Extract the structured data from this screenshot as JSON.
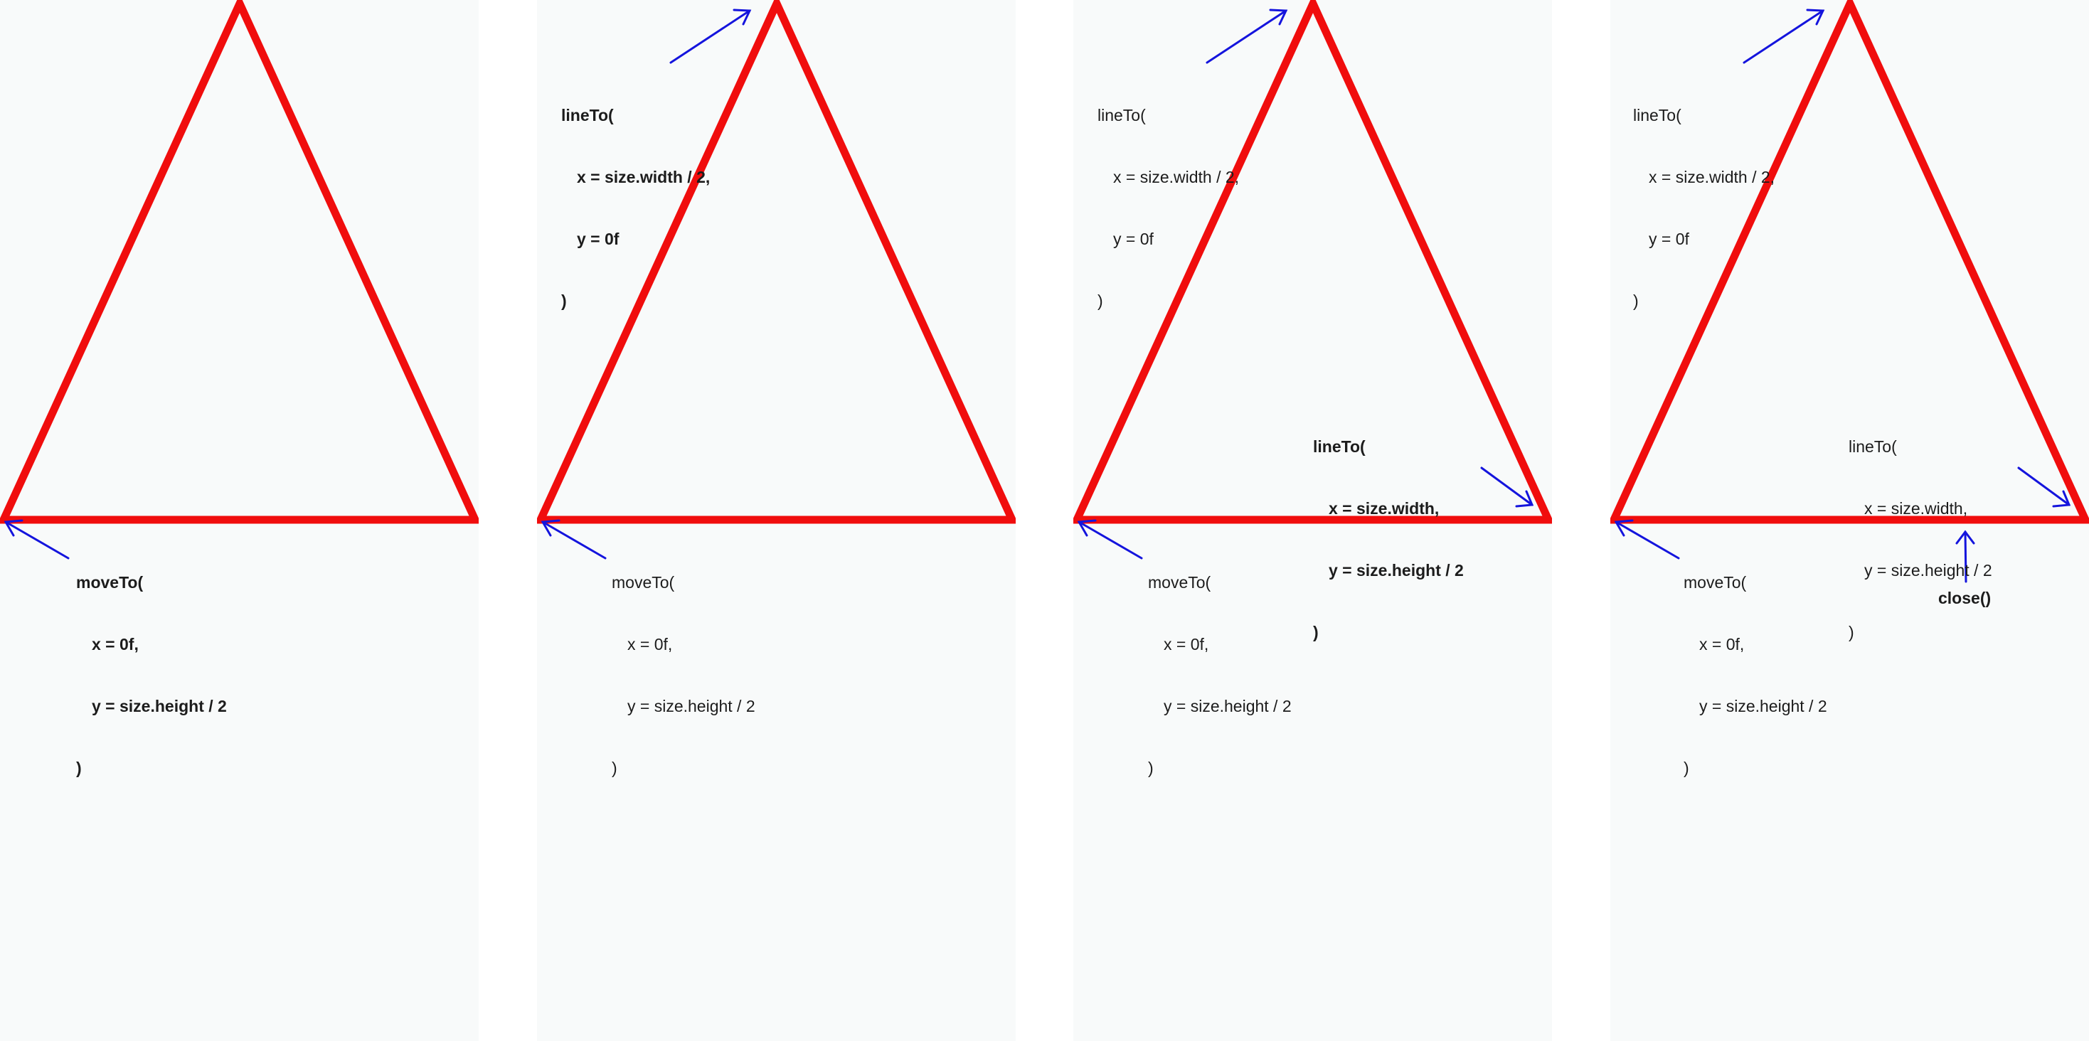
{
  "colors": {
    "panel_background": "#f8fafa",
    "triangle_stroke": "#f00d0d",
    "arrow": "#1414dd",
    "text": "#1c1c1c"
  },
  "steps": [
    {
      "moveTo": {
        "open": "moveTo(",
        "x": "x = 0f,",
        "y": "y = size.height / 2",
        "close": ")",
        "bold": true
      }
    },
    {
      "moveTo": {
        "open": "moveTo(",
        "x": "x = 0f,",
        "y": "y = size.height / 2",
        "close": ")",
        "bold": false
      },
      "lineTo1": {
        "open": "lineTo(",
        "x": "x = size.width / 2,",
        "y": "y = 0f",
        "close": ")",
        "bold": true
      }
    },
    {
      "moveTo": {
        "open": "moveTo(",
        "x": "x = 0f,",
        "y": "y = size.height / 2",
        "close": ")",
        "bold": false
      },
      "lineTo1": {
        "open": "lineTo(",
        "x": "x = size.width / 2,",
        "y": "y = 0f",
        "close": ")",
        "bold": false
      },
      "lineTo2": {
        "open": "lineTo(",
        "x": "x = size.width,",
        "y": "y = size.height / 2",
        "close": ")",
        "bold": true
      }
    },
    {
      "moveTo": {
        "open": "moveTo(",
        "x": "x = 0f,",
        "y": "y = size.height / 2",
        "close": ")",
        "bold": false
      },
      "lineTo1": {
        "open": "lineTo(",
        "x": "x = size.width / 2,",
        "y": "y = 0f",
        "close": ")",
        "bold": false
      },
      "lineTo2": {
        "open": "lineTo(",
        "x": "x = size.width,",
        "y": "y = size.height / 2",
        "close": ")",
        "bold": false
      },
      "close": {
        "label": "close()",
        "bold": true
      }
    }
  ]
}
